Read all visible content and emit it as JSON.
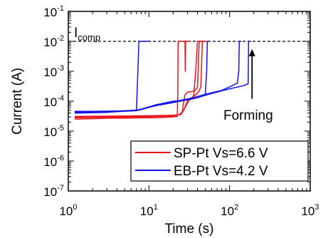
{
  "chart_data": {
    "type": "line",
    "xlabel": "Time (s)",
    "ylabel": "Current (A)",
    "x_scale": "log",
    "y_scale": "log",
    "xlim": [
      1,
      1000
    ],
    "ylim": [
      1e-07,
      0.1
    ],
    "x_ticks": [
      {
        "base": "10",
        "exp": "0",
        "value": 1
      },
      {
        "base": "10",
        "exp": "1",
        "value": 10
      },
      {
        "base": "10",
        "exp": "2",
        "value": 100
      },
      {
        "base": "10",
        "exp": "3",
        "value": 1000
      }
    ],
    "y_ticks": [
      {
        "base": "10",
        "exp": "-7",
        "value": 1e-07
      },
      {
        "base": "10",
        "exp": "-6",
        "value": 1e-06
      },
      {
        "base": "10",
        "exp": "-5",
        "value": 1e-05
      },
      {
        "base": "10",
        "exp": "-4",
        "value": 0.0001
      },
      {
        "base": "10",
        "exp": "-3",
        "value": 0.001
      },
      {
        "base": "10",
        "exp": "-2",
        "value": 0.01
      },
      {
        "base": "10",
        "exp": "-1",
        "value": 0.1
      }
    ],
    "compliance": {
      "main": "I",
      "sub": "comp",
      "value": 0.01
    },
    "annotation": {
      "text": "Forming",
      "arrow_x": 190,
      "arrow_from_y": 0.00012,
      "arrow_to_y": 0.0055
    },
    "legend_position": "bottom-right",
    "series": [
      {
        "name": "SP-Pt Vs=6.6 V",
        "color": "#e8141c",
        "curves": [
          {
            "x": [
              1.2,
              2,
              3,
              5,
              8,
              12,
              16,
              20,
              22.5,
              22.8,
              23,
              26,
              28,
              28.2,
              28.5,
              32
            ],
            "y": [
              2.5e-05,
              2.6e-05,
              2.7e-05,
              2.7e-05,
              2.8e-05,
              2.8e-05,
              2.9e-05,
              3e-05,
              3.1e-05,
              0.0002,
              0.01,
              0.01,
              0.01,
              0.001,
              0.01,
              0.01
            ]
          },
          {
            "x": [
              1.2,
              3,
              8,
              14,
              20,
              24,
              26,
              27,
              28,
              30,
              34,
              38,
              40,
              42,
              44
            ],
            "y": [
              2.8e-05,
              2.9e-05,
              3e-05,
              3.1e-05,
              3.2e-05,
              3.6e-05,
              4.5e-05,
              0.0001,
              0.00016,
              0.0002,
              0.00021,
              0.00024,
              0.0003,
              0.01,
              0.01
            ]
          },
          {
            "x": [
              1.2,
              4,
              10,
              18,
              24,
              27,
              30,
              34,
              36,
              38,
              40,
              45,
              50
            ],
            "y": [
              3e-05,
              3.1e-05,
              3.2e-05,
              3.3e-05,
              3.5e-05,
              5e-05,
              0.0001,
              0.00012,
              0.00016,
              0.001,
              0.01,
              0.01,
              0.01
            ]
          },
          {
            "x": [
              1.2,
              5,
              12,
              20,
              25,
              28,
              32,
              38,
              42,
              44,
              46,
              48,
              52
            ],
            "y": [
              3.1e-05,
              3.2e-05,
              3.3e-05,
              3.4e-05,
              3.6e-05,
              6e-05,
              0.00012,
              0.00016,
              0.00022,
              0.0003,
              0.01,
              0.01,
              0.01
            ]
          }
        ]
      },
      {
        "name": "EB-Pt Vs=4.2 V",
        "color": "#1414e8",
        "curves": [
          {
            "x": [
              1.2,
              2,
              4,
              6,
              7,
              7.3,
              7.5,
              8,
              9,
              10.5
            ],
            "y": [
              4.6e-05,
              4.6e-05,
              4.7e-05,
              4.8e-05,
              5e-05,
              0.001,
              0.01,
              0.01,
              0.01,
              0.01
            ]
          },
          {
            "x": [
              1.2,
              3,
              7,
              12,
              20,
              30,
              40,
              50,
              52,
              53,
              56
            ],
            "y": [
              4.2e-05,
              4.3e-05,
              4.8e-05,
              7.5e-05,
              0.0001,
              0.00011,
              0.00013,
              0.00016,
              0.001,
              0.01,
              0.01
            ]
          },
          {
            "x": [
              1.2,
              3,
              8,
              14,
              22,
              35,
              50,
              80,
              110,
              125,
              130,
              132,
              140
            ],
            "y": [
              4e-05,
              4.2e-05,
              5.2e-05,
              8e-05,
              0.0001,
              0.00013,
              0.00017,
              0.00023,
              0.00034,
              0.0004,
              0.001,
              0.01,
              0.01
            ]
          },
          {
            "x": [
              1.2,
              3,
              7,
              12,
              20,
              35,
              60,
              100,
              150,
              170,
              172,
              180,
              185
            ],
            "y": [
              4.4e-05,
              4.5e-05,
              5e-05,
              7e-05,
              9e-05,
              0.00012,
              0.00018,
              0.00026,
              0.00033,
              0.00038,
              0.01,
              0.01,
              0.01
            ]
          }
        ]
      }
    ]
  }
}
